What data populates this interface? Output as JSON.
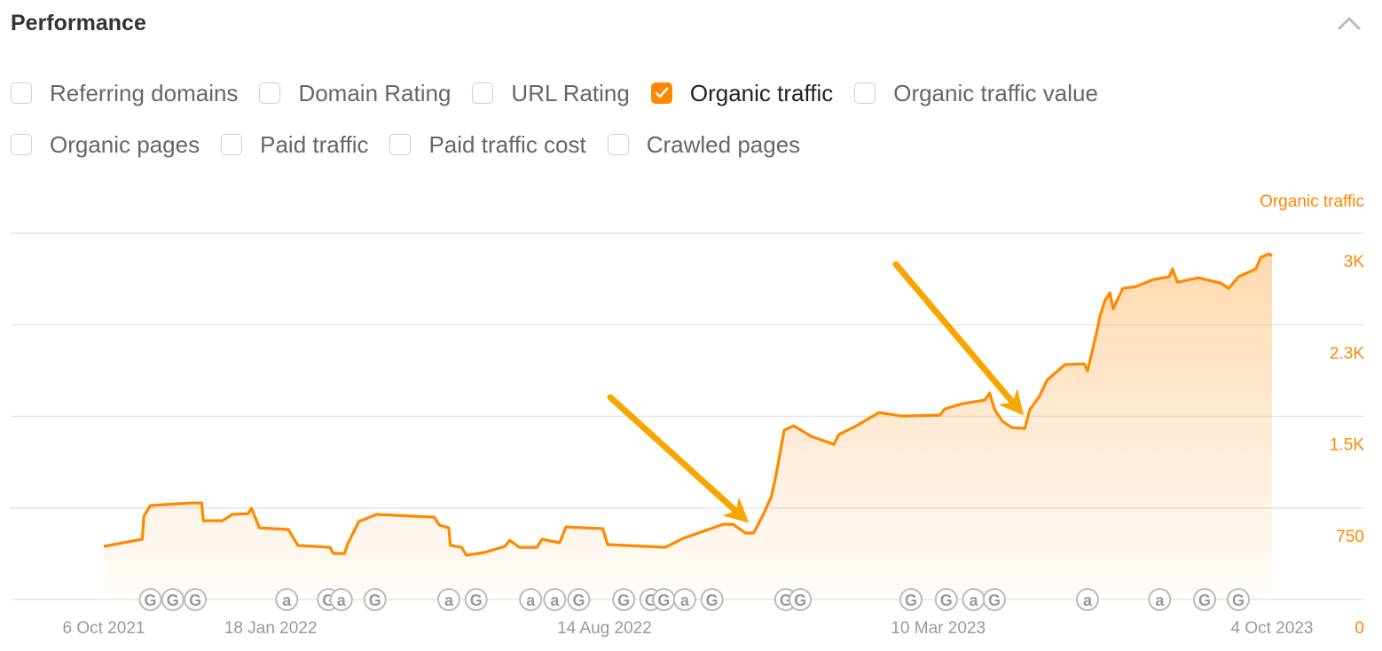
{
  "header": {
    "title": "Performance",
    "collapse_icon": "chevron-up-icon"
  },
  "options": [
    [
      {
        "label": "Referring domains",
        "checked": false
      },
      {
        "label": "Domain Rating",
        "checked": false
      },
      {
        "label": "URL Rating",
        "checked": false
      },
      {
        "label": "Organic traffic",
        "checked": true
      },
      {
        "label": "Organic traffic value",
        "checked": false
      }
    ],
    [
      {
        "label": "Organic pages",
        "checked": false
      },
      {
        "label": "Paid traffic",
        "checked": false
      },
      {
        "label": "Paid traffic cost",
        "checked": false
      },
      {
        "label": "Crawled pages",
        "checked": false
      }
    ]
  ],
  "colors": {
    "accent": "#ff8800",
    "arrow": "#f7a600",
    "grid": "#e6e6e6",
    "marker": "#bbbbbb"
  },
  "chart_data": {
    "type": "area",
    "series": [
      {
        "name": "Organic traffic",
        "color": "#ff8800"
      }
    ],
    "ylabel": "Organic traffic",
    "ylim": [
      0,
      3000
    ],
    "yticks": [
      {
        "v": 0,
        "label": "0"
      },
      {
        "v": 750,
        "label": "750"
      },
      {
        "v": 1500,
        "label": "1.5K"
      },
      {
        "v": 2250,
        "label": "2.3K"
      },
      {
        "v": 3000,
        "label": "3K"
      }
    ],
    "xlim": [
      "2021-10-06",
      "2023-10-04"
    ],
    "xticks": [
      {
        "date": "2021-10-06",
        "label": "6 Oct 2021"
      },
      {
        "date": "2022-01-18",
        "label": "18 Jan 2022"
      },
      {
        "date": "2022-08-14",
        "label": "14 Aug 2022"
      },
      {
        "date": "2023-03-10",
        "label": "10 Mar 2023"
      },
      {
        "date": "2023-10-04",
        "label": "4 Oct 2023"
      }
    ],
    "grid": true,
    "points": [
      [
        "2021-10-06",
        436
      ],
      [
        "2021-10-30",
        494
      ],
      [
        "2021-10-31",
        682
      ],
      [
        "2021-11-04",
        770
      ],
      [
        "2021-11-29",
        791
      ],
      [
        "2021-12-06",
        791
      ],
      [
        "2021-12-07",
        646
      ],
      [
        "2021-12-19",
        646
      ],
      [
        "2021-12-25",
        697
      ],
      [
        "2022-01-04",
        704
      ],
      [
        "2022-01-06",
        748
      ],
      [
        "2022-01-11",
        588
      ],
      [
        "2022-01-29",
        574
      ],
      [
        "2022-02-04",
        443
      ],
      [
        "2022-02-24",
        428
      ],
      [
        "2022-02-26",
        378
      ],
      [
        "2022-03-05",
        378
      ],
      [
        "2022-03-07",
        457
      ],
      [
        "2022-03-14",
        639
      ],
      [
        "2022-03-25",
        697
      ],
      [
        "2022-04-30",
        675
      ],
      [
        "2022-05-03",
        610
      ],
      [
        "2022-05-09",
        588
      ],
      [
        "2022-05-10",
        443
      ],
      [
        "2022-05-17",
        428
      ],
      [
        "2022-05-20",
        363
      ],
      [
        "2022-05-31",
        385
      ],
      [
        "2022-06-13",
        436
      ],
      [
        "2022-06-16",
        486
      ],
      [
        "2022-06-22",
        428
      ],
      [
        "2022-07-03",
        428
      ],
      [
        "2022-07-06",
        494
      ],
      [
        "2022-07-17",
        465
      ],
      [
        "2022-07-21",
        595
      ],
      [
        "2022-08-13",
        581
      ],
      [
        "2022-08-16",
        450
      ],
      [
        "2022-09-21",
        428
      ],
      [
        "2022-10-02",
        501
      ],
      [
        "2022-10-13",
        552
      ],
      [
        "2022-10-27",
        617
      ],
      [
        "2022-11-02",
        617
      ],
      [
        "2022-11-10",
        545
      ],
      [
        "2022-11-15",
        545
      ],
      [
        "2022-11-21",
        697
      ],
      [
        "2022-11-26",
        842
      ],
      [
        "2022-11-29",
        1024
      ],
      [
        "2022-12-02",
        1241
      ],
      [
        "2022-12-04",
        1387
      ],
      [
        "2022-12-10",
        1423
      ],
      [
        "2022-12-21",
        1336
      ],
      [
        "2023-01-04",
        1271
      ],
      [
        "2023-01-07",
        1350
      ],
      [
        "2023-01-18",
        1423
      ],
      [
        "2023-02-01",
        1532
      ],
      [
        "2023-02-15",
        1503
      ],
      [
        "2023-03-11",
        1510
      ],
      [
        "2023-03-14",
        1561
      ],
      [
        "2023-03-25",
        1604
      ],
      [
        "2023-04-08",
        1634
      ],
      [
        "2023-04-11",
        1692
      ],
      [
        "2023-04-14",
        1561
      ],
      [
        "2023-04-19",
        1459
      ],
      [
        "2023-04-25",
        1408
      ],
      [
        "2023-05-03",
        1401
      ],
      [
        "2023-05-06",
        1554
      ],
      [
        "2023-05-12",
        1663
      ],
      [
        "2023-05-17",
        1800
      ],
      [
        "2023-05-28",
        1924
      ],
      [
        "2023-06-09",
        1931
      ],
      [
        "2023-06-11",
        1873
      ],
      [
        "2023-06-16",
        2149
      ],
      [
        "2023-06-19",
        2330
      ],
      [
        "2023-06-22",
        2454
      ],
      [
        "2023-06-25",
        2512
      ],
      [
        "2023-06-27",
        2381
      ],
      [
        "2023-07-03",
        2548
      ],
      [
        "2023-07-11",
        2563
      ],
      [
        "2023-07-22",
        2621
      ],
      [
        "2023-08-01",
        2643
      ],
      [
        "2023-08-03",
        2708
      ],
      [
        "2023-08-06",
        2599
      ],
      [
        "2023-08-19",
        2635
      ],
      [
        "2023-09-02",
        2592
      ],
      [
        "2023-09-07",
        2548
      ],
      [
        "2023-09-13",
        2643
      ],
      [
        "2023-09-24",
        2708
      ],
      [
        "2023-09-27",
        2802
      ],
      [
        "2023-10-02",
        2831
      ],
      [
        "2023-10-04",
        2817
      ]
    ],
    "events": [
      {
        "date": "2021-11-04",
        "label": "G"
      },
      {
        "date": "2021-11-18",
        "label": "G"
      },
      {
        "date": "2021-12-02",
        "label": "G"
      },
      {
        "date": "2022-01-28",
        "label": "a"
      },
      {
        "date": "2022-02-23",
        "label": "G"
      },
      {
        "date": "2022-03-03",
        "label": "a"
      },
      {
        "date": "2022-03-24",
        "label": "G"
      },
      {
        "date": "2022-05-09",
        "label": "a"
      },
      {
        "date": "2022-05-26",
        "label": "G"
      },
      {
        "date": "2022-06-29",
        "label": "a"
      },
      {
        "date": "2022-07-14",
        "label": "a"
      },
      {
        "date": "2022-07-29",
        "label": "G"
      },
      {
        "date": "2022-08-26",
        "label": "G"
      },
      {
        "date": "2022-09-12",
        "label": "G"
      },
      {
        "date": "2022-09-20",
        "label": "G"
      },
      {
        "date": "2022-10-03",
        "label": "a"
      },
      {
        "date": "2022-10-20",
        "label": "G"
      },
      {
        "date": "2022-12-05",
        "label": "G"
      },
      {
        "date": "2022-12-14",
        "label": "G"
      },
      {
        "date": "2023-02-21",
        "label": "G"
      },
      {
        "date": "2023-03-15",
        "label": "G"
      },
      {
        "date": "2023-04-01",
        "label": "a"
      },
      {
        "date": "2023-04-14",
        "label": "G"
      },
      {
        "date": "2023-06-11",
        "label": "a"
      },
      {
        "date": "2023-07-26",
        "label": "a"
      },
      {
        "date": "2023-08-23",
        "label": "G"
      },
      {
        "date": "2023-09-13",
        "label": "G"
      }
    ],
    "annotations": [
      {
        "type": "arrow",
        "points_to": "2022-11-15"
      },
      {
        "type": "arrow",
        "points_to": "2023-05-03"
      }
    ]
  }
}
